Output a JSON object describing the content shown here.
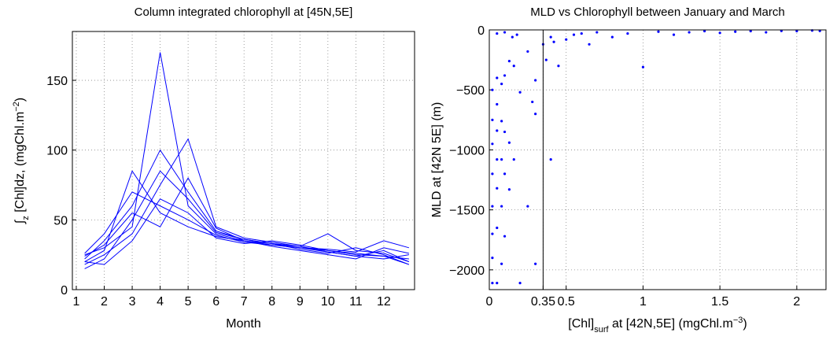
{
  "chart_data": [
    {
      "type": "line",
      "title": "Column integrated chlorophyll at [45N,5E]",
      "xlabel": [
        {
          "text": "Month"
        }
      ],
      "ylabel": [
        {
          "text": "∫"
        },
        {
          "text": "z",
          "shift": "sub"
        },
        {
          "text": " [Chl]dz, (mgChl.m"
        },
        {
          "text": "−2",
          "shift": "super"
        },
        {
          "text": ")"
        }
      ],
      "x": [
        1.3,
        2,
        3,
        4,
        5,
        6,
        7,
        8,
        9,
        10,
        11,
        12,
        12.9
      ],
      "series": [
        {
          "color": "#0000ff",
          "values": [
            25,
            30,
            45,
            170,
            60,
            40,
            35,
            33,
            30,
            28,
            25,
            24,
            22
          ]
        },
        {
          "color": "#0000ff",
          "values": [
            20,
            28,
            85,
            55,
            45,
            38,
            35,
            32,
            30,
            27,
            24,
            28,
            20
          ]
        },
        {
          "color": "#0000ff",
          "values": [
            22,
            35,
            60,
            100,
            70,
            42,
            36,
            33,
            29,
            26,
            30,
            25,
            18
          ]
        },
        {
          "color": "#0000ff",
          "values": [
            18,
            25,
            40,
            75,
            108,
            45,
            37,
            34,
            31,
            27,
            24,
            22,
            25
          ]
        },
        {
          "color": "#0000ff",
          "values": [
            26,
            40,
            70,
            60,
            50,
            39,
            34,
            32,
            30,
            29,
            27,
            35,
            30
          ]
        },
        {
          "color": "#0000ff",
          "values": [
            15,
            22,
            50,
            85,
            65,
            41,
            36,
            33,
            31,
            40,
            28,
            26,
            20
          ]
        },
        {
          "color": "#0000ff",
          "values": [
            24,
            32,
            55,
            45,
            80,
            44,
            35,
            31,
            28,
            25,
            22,
            30,
            26
          ]
        },
        {
          "color": "#0000ff",
          "values": [
            20,
            18,
            35,
            65,
            55,
            37,
            33,
            35,
            32,
            28,
            26,
            24,
            18
          ]
        }
      ],
      "xlim": [
        0.86,
        13.1
      ],
      "xticks": [
        1,
        2,
        3,
        4,
        5,
        6,
        7,
        8,
        9,
        10,
        11,
        12
      ],
      "ylim": [
        0,
        185
      ],
      "yticks": [
        0,
        50,
        100,
        150
      ],
      "grid": true
    },
    {
      "type": "scatter",
      "title": "MLD vs Chlorophyll between January and March",
      "xlabel": [
        {
          "text": "[Chl]"
        },
        {
          "text": "surf",
          "shift": "sub"
        },
        {
          "text": " at [42N,5E] (mgChl.m"
        },
        {
          "text": "−3",
          "shift": "super"
        },
        {
          "text": ")"
        }
      ],
      "ylabel": [
        {
          "text": "MLD at [42N 5E] (m)"
        }
      ],
      "color": "#0000ff",
      "x": [
        0.02,
        0.02,
        0.02,
        0.02,
        0.02,
        0.02,
        0.02,
        0.02,
        0.05,
        0.05,
        0.05,
        0.05,
        0.05,
        0.05,
        0.05,
        0.08,
        0.08,
        0.08,
        0.08,
        0.08,
        0.1,
        0.1,
        0.1,
        0.1,
        0.13,
        0.13,
        0.13,
        0.16,
        0.16,
        0.2,
        0.2,
        0.25,
        0.25,
        0.3,
        0.3,
        0.35,
        0.4,
        0.4,
        0.45,
        0.5,
        0.55,
        0.6,
        0.65,
        0.7,
        0.8,
        0.9,
        1.0,
        1.1,
        1.2,
        1.3,
        1.4,
        1.5,
        1.6,
        1.7,
        1.8,
        1.9,
        2.0,
        2.1,
        2.15,
        0.3,
        0.37,
        0.42,
        0.15,
        0.18,
        0.1,
        0.28,
        0.05
      ],
      "y": [
        -2110,
        -1900,
        -1700,
        -1470,
        -1200,
        -950,
        -750,
        -500,
        -2110,
        -1650,
        -1320,
        -1080,
        -840,
        -620,
        -400,
        -1950,
        -1470,
        -1080,
        -760,
        -450,
        -1720,
        -1200,
        -850,
        -380,
        -1330,
        -940,
        -260,
        -1080,
        -300,
        -2110,
        -520,
        -1470,
        -180,
        -1950,
        -420,
        -120,
        -1080,
        -60,
        -300,
        -80,
        -40,
        -30,
        -120,
        -20,
        -60,
        -30,
        -310,
        -15,
        -40,
        -20,
        -10,
        -25,
        -15,
        -10,
        -20,
        -8,
        -10,
        -5,
        -8,
        -700,
        -250,
        -100,
        -60,
        -40,
        -20,
        -600,
        -30
      ],
      "vline": 0.35,
      "xlim": [
        0,
        2.19
      ],
      "xticks": [
        0,
        0.35,
        0.5,
        1,
        1.5,
        2
      ],
      "ylim": [
        -2165,
        0
      ],
      "yticks": [
        -2000,
        -1500,
        -1000,
        -500,
        0
      ],
      "grid": true
    }
  ]
}
